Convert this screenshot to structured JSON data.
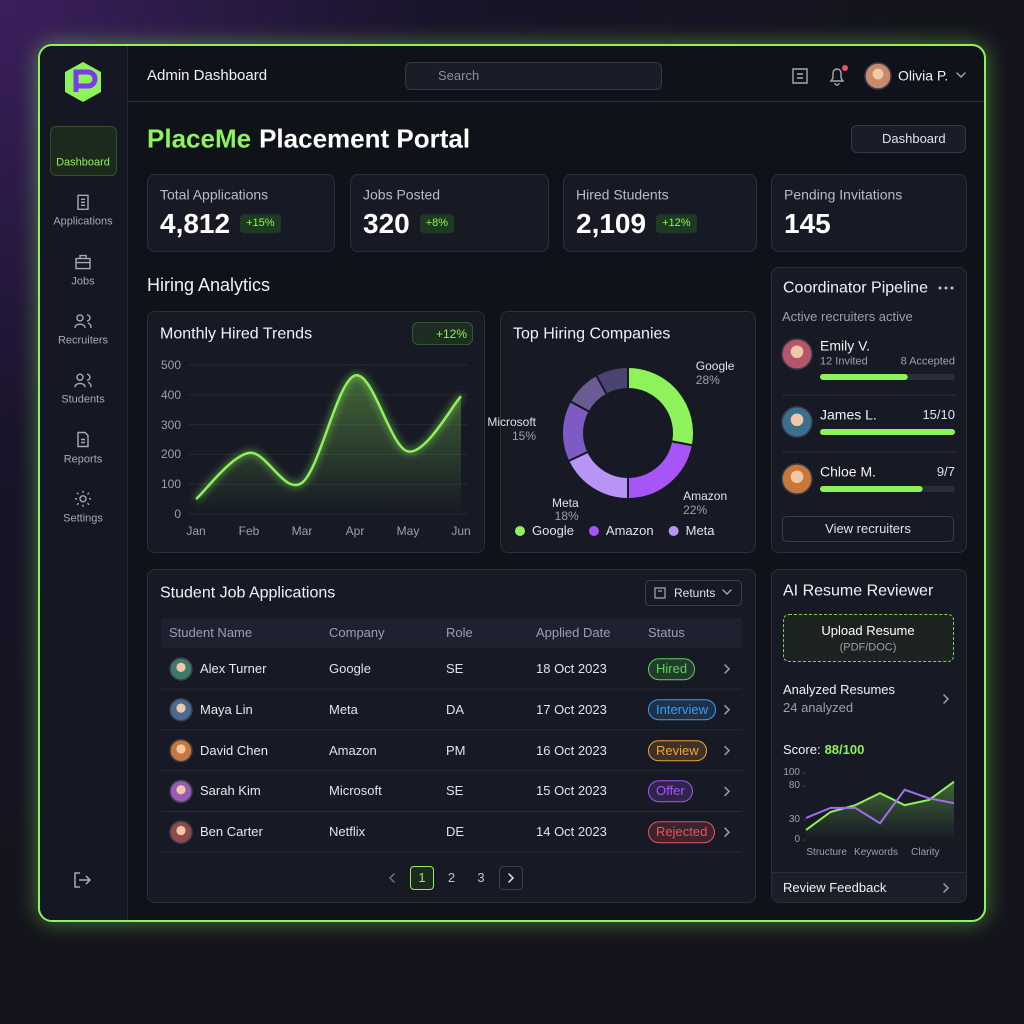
{
  "sidebar": {
    "nav": [
      "Dashboard",
      "Applications",
      "Jobs",
      "Recruiters",
      "Students",
      "Reports",
      "Settings"
    ],
    "active": 0
  },
  "topbar": {
    "title": "Admin Dashboard",
    "search": "Search",
    "user": "Olivia P."
  },
  "header": {
    "brand": "PlaceMe",
    "title": "Placement Portal",
    "view": "Dashboard"
  },
  "stats": [
    {
      "label": "Total Applications",
      "value": "4,812",
      "change": "+15%"
    },
    {
      "label": "Jobs Posted",
      "value": "320",
      "change": "+8%"
    },
    {
      "label": "Hired Students",
      "value": "2,109",
      "change": "+12%"
    },
    {
      "label": "Pending Invitations",
      "value": "145"
    }
  ],
  "analytics": {
    "title": "Hiring Analytics",
    "monthly": {
      "type": "line",
      "title": "Monthly Hired Trends",
      "badge": "+12%",
      "categories": [
        "Jan",
        "Feb",
        "Mar",
        "Apr",
        "May",
        "Jun"
      ],
      "values": [
        50,
        205,
        105,
        465,
        210,
        395
      ],
      "ylim": [
        0,
        500
      ],
      "yticks": [
        0,
        100,
        200,
        300,
        400,
        500
      ],
      "color": "#8ef35a",
      "grid": true
    },
    "companies": {
      "type": "donut",
      "title": "Top Hiring Companies",
      "categories": [
        "Google",
        "Amazon",
        "Meta",
        "Microsoft",
        null,
        null
      ],
      "values": [
        28,
        22,
        18,
        15,
        9,
        8
      ],
      "value_labels": [
        "28%",
        "22%",
        "18%",
        "15%",
        null,
        null
      ],
      "colors": [
        "#8ef35a",
        "#a855f7",
        "#b794f6",
        "#7c5cc4",
        "#6b5b95",
        "#4b4470"
      ],
      "legend": [
        "Google",
        "Amazon",
        "Meta"
      ]
    }
  },
  "pipeline": {
    "title": "Coordinator Pipeline",
    "subtitle": "Active recruiters active",
    "recruiters": [
      {
        "name": "Emily V.",
        "invited": "12 Invited",
        "accepted": "8 Accepted",
        "progress": 65
      },
      {
        "name": "James L.",
        "ratio": "15/10",
        "progress": 100
      },
      {
        "name": "Chloe M.",
        "ratio": "9/7",
        "progress": 76
      }
    ],
    "button": "View recruiters"
  },
  "applications": {
    "title": "Student Job Applications",
    "filter": "Retunts",
    "columns": [
      "Student Name",
      "Company",
      "Role",
      "Applied Date",
      "Status"
    ],
    "rows": [
      {
        "name": "Alex Turner",
        "company": "Google",
        "role": "SE",
        "date": "18 Oct 2023",
        "status": "Hired",
        "status_color": "#5ed35a"
      },
      {
        "name": "Maya Lin",
        "company": "Meta",
        "role": "DA",
        "date": "17 Oct 2023",
        "status": "Interview",
        "status_color": "#3b9cf0"
      },
      {
        "name": "David Chen",
        "company": "Amazon",
        "role": "PM",
        "date": "16 Oct 2023",
        "status": "Review",
        "status_color": "#f0a03b"
      },
      {
        "name": "Sarah Kim",
        "company": "Microsoft",
        "role": "SE",
        "date": "15 Oct 2023",
        "status": "Offer",
        "status_color": "#a855f7"
      },
      {
        "name": "Ben Carter",
        "company": "Netflix",
        "role": "DE",
        "date": "14 Oct 2023",
        "status": "Rejected",
        "status_color": "#f0505a"
      }
    ],
    "pages": [
      1,
      2,
      3
    ],
    "active_page": 0
  },
  "resume": {
    "title": "AI Resume Reviewer",
    "upload": "Upload Resume",
    "formats": "(PDF/DOC)",
    "analyzed": "Analyzed Resumes",
    "analyzed_count": "24 analyzed",
    "score_label": "Score:",
    "score": "88/100",
    "chart": {
      "type": "line",
      "categories": [
        null,
        "Structure",
        null,
        "Keywords",
        null,
        "Clarity",
        null
      ],
      "series": [
        {
          "color": "#8ef35a",
          "values": [
            15,
            42,
            52,
            70,
            52,
            60,
            87
          ]
        },
        {
          "color": "#a06cf0",
          "values": [
            33,
            48,
            48,
            25,
            75,
            62,
            55
          ]
        }
      ],
      "ylim": [
        0,
        100
      ],
      "yticks": [
        0,
        30,
        80,
        100
      ]
    },
    "footer": "Review Feedback"
  }
}
